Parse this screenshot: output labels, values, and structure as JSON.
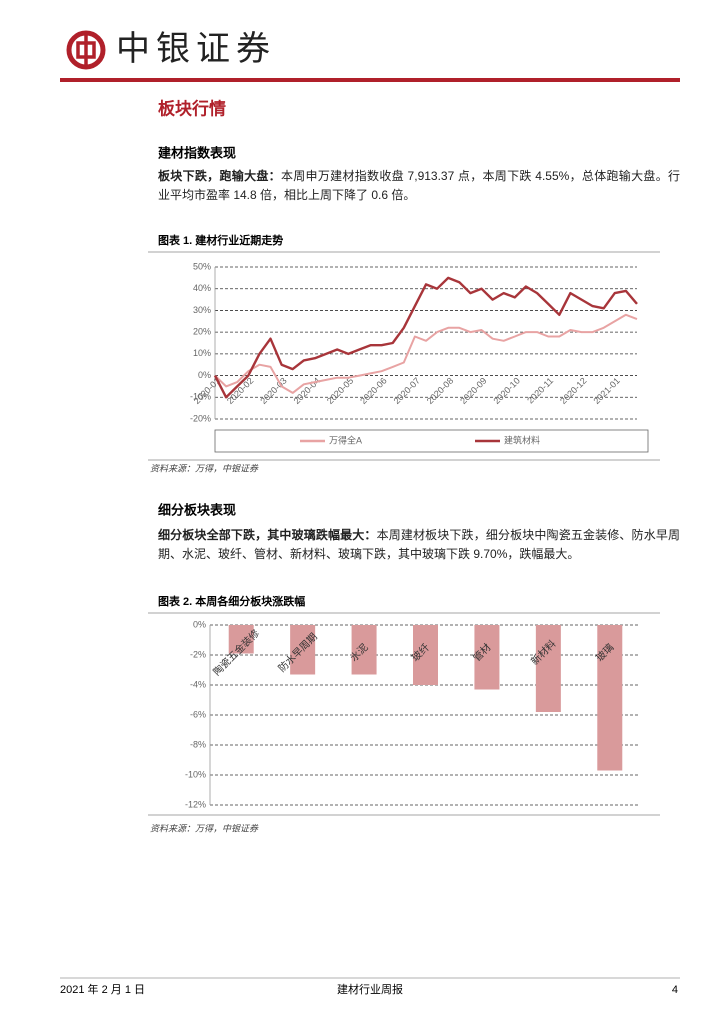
{
  "header": {
    "logo_text": "中银证券"
  },
  "section_title": "板块行情",
  "sections": [
    {
      "heading": "建材指数表现",
      "lead": "板块下跌，跑输大盘：",
      "text": "本周申万建材指数收盘 7,913.37 点，本周下跌 4.55%，总体跑输大盘。行业平均市盈率 14.8 倍，相比上周下降了 0.6 倍。"
    },
    {
      "heading": "细分板块表现",
      "lead": "细分板块全部下跌，其中玻璃跌幅最大：",
      "text": "本周建材板块下跌，细分板块中陶瓷五金装修、防水早周期、水泥、玻纤、管材、新材料、玻璃下跌，其中玻璃下跌 9.70%，跌幅最大。"
    }
  ],
  "chart_data": [
    {
      "type": "line",
      "title": "图表 1. 建材行业近期走势",
      "source": "资料来源：万得，中银证券",
      "categories": [
        "2020-01",
        null,
        null,
        "2020-02",
        null,
        null,
        "2020-03",
        null,
        null,
        "2020-04",
        null,
        null,
        "2020-05",
        null,
        null,
        "2020-06",
        null,
        null,
        "2020-07",
        null,
        null,
        "2020-08",
        null,
        null,
        "2020-09",
        null,
        null,
        "2020-10",
        null,
        null,
        "2020-11",
        null,
        null,
        "2020-12",
        null,
        null,
        "2021-01",
        null,
        null
      ],
      "series": [
        {
          "name": "万得全A",
          "color": "#e8a3a3",
          "values": [
            0,
            -5,
            -3,
            2,
            5,
            4,
            -5,
            -8,
            -4,
            -3,
            -2,
            -1,
            -1,
            0,
            1,
            2,
            4,
            6,
            18,
            16,
            20,
            22,
            22,
            20,
            21,
            17,
            16,
            18,
            20,
            20,
            18,
            18,
            21,
            20,
            20,
            22,
            25,
            28,
            26
          ]
        },
        {
          "name": "建筑材料",
          "color": "#a8353a",
          "values": [
            0,
            -10,
            -5,
            0,
            10,
            17,
            5,
            3,
            7,
            8,
            10,
            12,
            10,
            12,
            14,
            14,
            15,
            22,
            32,
            42,
            40,
            45,
            43,
            38,
            40,
            35,
            38,
            36,
            41,
            38,
            33,
            28,
            38,
            35,
            32,
            31,
            38,
            39,
            33
          ]
        }
      ],
      "ylim": [
        -20,
        50
      ],
      "yticks": [
        {
          "value": -20,
          "label": "-20%"
        },
        {
          "value": -10,
          "label": "-10%"
        },
        {
          "value": 0,
          "label": "0%"
        },
        {
          "value": 10,
          "label": "10%"
        },
        {
          "value": 20,
          "label": "20%"
        },
        {
          "value": 30,
          "label": "30%"
        },
        {
          "value": 40,
          "label": "40%"
        },
        {
          "value": 50,
          "label": "50%"
        }
      ],
      "grid": true,
      "legend": "bottom"
    },
    {
      "type": "bar",
      "title": "图表 2. 本周各细分板块涨跌幅",
      "source": "资料来源：万得，中银证券",
      "categories": [
        "陶瓷五金装修",
        "防水早周期",
        "水泥",
        "玻纤",
        "管材",
        "新材料",
        "玻璃"
      ],
      "values": [
        -1.9,
        -3.3,
        -3.3,
        -4.0,
        -4.3,
        -5.8,
        -9.7
      ],
      "color": "#d99a9b",
      "ylim": [
        -12,
        0
      ],
      "yticks": [
        {
          "value": -12,
          "label": "-12%"
        },
        {
          "value": -10,
          "label": "-10%"
        },
        {
          "value": -8,
          "label": "-8%"
        },
        {
          "value": -6,
          "label": "-6%"
        },
        {
          "value": -4,
          "label": "-4%"
        },
        {
          "value": -2,
          "label": "-2%"
        },
        {
          "value": 0,
          "label": "0%"
        }
      ],
      "grid": true
    }
  ],
  "footer": {
    "date": "2021 年 2 月 1 日",
    "title": "建材行业周报",
    "page": "4"
  }
}
